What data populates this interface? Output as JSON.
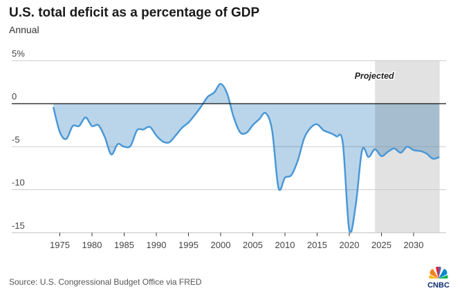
{
  "chart_data": {
    "type": "area",
    "title": "U.S. total deficit as a percentage of GDP",
    "subtitle": "Annual",
    "source": "Source: U.S. Congressional Budget Office via FRED",
    "brand": "CNBC",
    "annotation": "Projected",
    "projected_range": [
      2024,
      2034
    ],
    "xlim": [
      1974,
      2034
    ],
    "ylim": [
      -15,
      5
    ],
    "x_ticks": [
      1975,
      1980,
      1985,
      1990,
      1995,
      2000,
      2005,
      2010,
      2015,
      2020,
      2025,
      2030
    ],
    "y_ticks": [
      {
        "value": 5,
        "label": "5%"
      },
      {
        "value": 0,
        "label": "0"
      },
      {
        "value": -5,
        "label": "-5"
      },
      {
        "value": -10,
        "label": "-10"
      },
      {
        "value": -15,
        "label": "-15"
      }
    ],
    "grid": true,
    "colors": {
      "line": "#4a97d6",
      "fill": "#bad5e9",
      "projected_shade": "#e2e2e2",
      "zero_line": "#111111",
      "grid": "#cccccc"
    },
    "x": [
      1974,
      1975,
      1976,
      1977,
      1978,
      1979,
      1980,
      1981,
      1982,
      1983,
      1984,
      1985,
      1986,
      1987,
      1988,
      1989,
      1990,
      1991,
      1992,
      1993,
      1994,
      1995,
      1996,
      1997,
      1998,
      1999,
      2000,
      2001,
      2002,
      2003,
      2004,
      2005,
      2006,
      2007,
      2008,
      2009,
      2010,
      2011,
      2012,
      2013,
      2014,
      2015,
      2016,
      2017,
      2018,
      2019,
      2020,
      2021,
      2022,
      2023,
      2024,
      2025,
      2026,
      2027,
      2028,
      2029,
      2030,
      2031,
      2032,
      2033,
      2034
    ],
    "values": [
      -0.4,
      -3.3,
      -4.1,
      -2.6,
      -2.6,
      -1.6,
      -2.6,
      -2.5,
      -3.9,
      -5.9,
      -4.7,
      -5.0,
      -4.9,
      -3.1,
      -3.0,
      -2.7,
      -3.7,
      -4.4,
      -4.5,
      -3.7,
      -2.8,
      -2.2,
      -1.3,
      -0.3,
      0.8,
      1.3,
      2.3,
      1.2,
      -1.5,
      -3.3,
      -3.4,
      -2.5,
      -1.8,
      -1.1,
      -3.1,
      -9.8,
      -8.6,
      -8.3,
      -6.6,
      -4.0,
      -2.8,
      -2.4,
      -3.1,
      -3.4,
      -3.8,
      -4.6,
      -14.7,
      -11.8,
      -5.4,
      -6.2,
      -5.3,
      -6.1,
      -5.6,
      -5.2,
      -5.7,
      -5.0,
      -5.4,
      -5.5,
      -5.8,
      -6.4,
      -6.2
    ]
  }
}
